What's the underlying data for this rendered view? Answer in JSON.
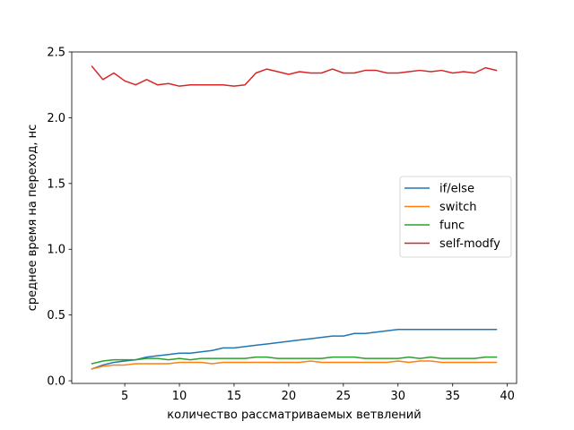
{
  "chart_data": {
    "type": "line",
    "title": "",
    "xlabel": "количество рассматриваемых ветвлений",
    "ylabel": "среднее время на переход, нс",
    "xlim": [
      0.15,
      40.85
    ],
    "ylim": [
      -0.02,
      2.5
    ],
    "xticks": [
      5,
      10,
      15,
      20,
      25,
      30,
      35,
      40
    ],
    "yticks": [
      0.0,
      0.5,
      1.0,
      1.5,
      2.0,
      2.5
    ],
    "ytick_labels": [
      "0.0",
      "0.5",
      "1.0",
      "1.5",
      "2.0",
      "2.5"
    ],
    "grid": false,
    "legend_position": "center-right",
    "x": [
      2,
      3,
      4,
      5,
      6,
      7,
      8,
      9,
      10,
      11,
      12,
      13,
      14,
      15,
      16,
      17,
      18,
      19,
      20,
      21,
      22,
      23,
      24,
      25,
      26,
      27,
      28,
      29,
      30,
      31,
      32,
      33,
      34,
      35,
      36,
      37,
      38,
      39
    ],
    "series": [
      {
        "name": "if/else",
        "color": "#1f77b4",
        "values": [
          0.09,
          0.12,
          0.14,
          0.15,
          0.16,
          0.18,
          0.19,
          0.2,
          0.21,
          0.21,
          0.22,
          0.23,
          0.25,
          0.25,
          0.26,
          0.27,
          0.28,
          0.29,
          0.3,
          0.31,
          0.32,
          0.33,
          0.34,
          0.34,
          0.36,
          0.36,
          0.37,
          0.38,
          0.39,
          0.39,
          0.39,
          0.39,
          0.39,
          0.39,
          0.39,
          0.39,
          0.39,
          0.39
        ]
      },
      {
        "name": "switch",
        "color": "#ff7f0e",
        "values": [
          0.09,
          0.11,
          0.12,
          0.12,
          0.13,
          0.13,
          0.13,
          0.13,
          0.14,
          0.14,
          0.14,
          0.13,
          0.14,
          0.14,
          0.14,
          0.14,
          0.14,
          0.14,
          0.14,
          0.14,
          0.15,
          0.14,
          0.14,
          0.14,
          0.14,
          0.14,
          0.14,
          0.14,
          0.15,
          0.14,
          0.15,
          0.15,
          0.14,
          0.14,
          0.14,
          0.14,
          0.14,
          0.14
        ]
      },
      {
        "name": "func",
        "color": "#2ca02c",
        "values": [
          0.13,
          0.15,
          0.16,
          0.16,
          0.16,
          0.17,
          0.17,
          0.16,
          0.17,
          0.16,
          0.17,
          0.17,
          0.17,
          0.17,
          0.17,
          0.18,
          0.18,
          0.17,
          0.17,
          0.17,
          0.17,
          0.17,
          0.18,
          0.18,
          0.18,
          0.17,
          0.17,
          0.17,
          0.17,
          0.18,
          0.17,
          0.18,
          0.17,
          0.17,
          0.17,
          0.17,
          0.18,
          0.18
        ]
      },
      {
        "name": "self-modfy",
        "color": "#d62728",
        "values": [
          2.39,
          2.29,
          2.34,
          2.28,
          2.25,
          2.29,
          2.25,
          2.26,
          2.24,
          2.25,
          2.25,
          2.25,
          2.25,
          2.24,
          2.25,
          2.34,
          2.37,
          2.35,
          2.33,
          2.35,
          2.34,
          2.34,
          2.37,
          2.34,
          2.34,
          2.36,
          2.36,
          2.34,
          2.34,
          2.35,
          2.36,
          2.35,
          2.36,
          2.34,
          2.35,
          2.34,
          2.38,
          2.36
        ]
      }
    ]
  }
}
